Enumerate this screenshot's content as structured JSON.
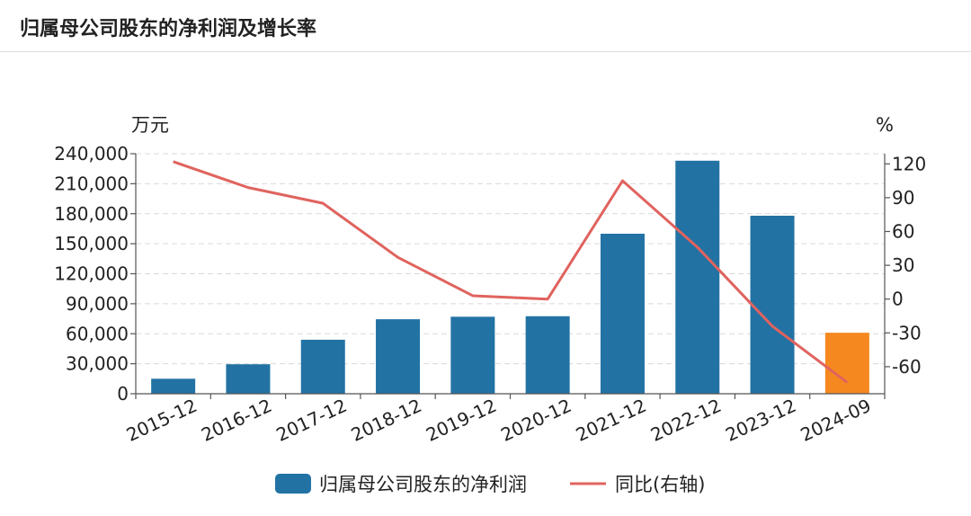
{
  "page": {
    "title": "归属母公司股东的净利润及增长率"
  },
  "chart_data": {
    "type": "bar",
    "categories": [
      "2015-12",
      "2016-12",
      "2017-12",
      "2018-12",
      "2019-12",
      "2020-12",
      "2021-12",
      "2022-12",
      "2023-12",
      "2024-09"
    ],
    "series": [
      {
        "name": "归属母公司股东的净利润",
        "type": "bar",
        "axis": "left",
        "values": [
          15000,
          29500,
          54000,
          74500,
          77000,
          77500,
          160000,
          233000,
          178000,
          61000
        ],
        "color": "#2272a4",
        "highlight_last_color": "#f5881f"
      },
      {
        "name": "同比(右轴)",
        "type": "line",
        "axis": "right",
        "values": [
          122,
          99,
          85,
          37,
          3,
          0,
          105,
          46,
          -24,
          -74
        ],
        "color": "#e0635e"
      }
    ],
    "y_left": {
      "unit_label": "万元",
      "ylim": [
        0,
        240000
      ],
      "ticks": [
        0,
        30000,
        60000,
        90000,
        120000,
        150000,
        180000,
        210000,
        240000
      ],
      "tick_labels": [
        "0",
        "30,000",
        "60,000",
        "90,000",
        "120,000",
        "150,000",
        "180,000",
        "210,000",
        "240,000"
      ]
    },
    "y_right": {
      "unit_label": "%",
      "ylim": [
        -84,
        129
      ],
      "ticks": [
        -60,
        -30,
        0,
        30,
        60,
        90,
        120
      ],
      "tick_labels": [
        "-60",
        "-30",
        "0",
        "30",
        "60",
        "90",
        "120"
      ]
    },
    "grid": true,
    "legend_position": "bottom-center"
  }
}
